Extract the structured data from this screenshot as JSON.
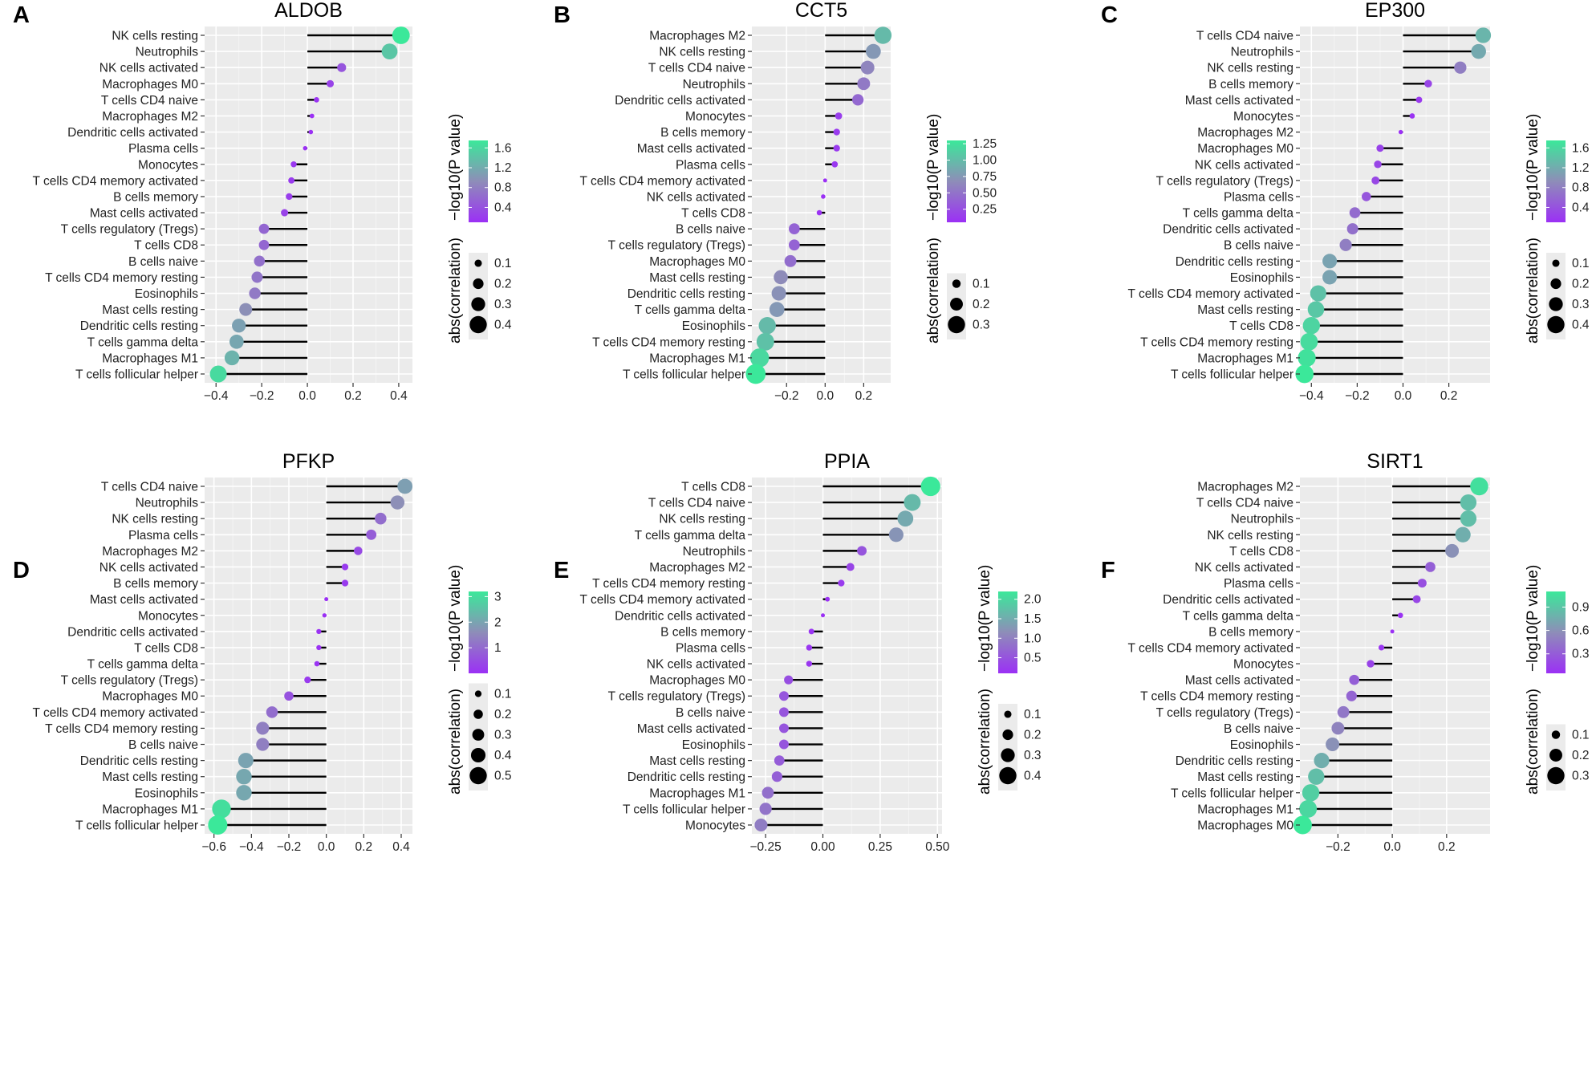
{
  "chart_data": [
    {
      "type": "lollipop",
      "panel": "A",
      "title": "ALDOB",
      "xlim": [
        -0.45,
        0.46
      ],
      "xticks": [
        -0.4,
        -0.2,
        0.0,
        0.2,
        0.4
      ],
      "xtick_labels": [
        "−0.4",
        "−0.2",
        "0.0",
        "0.2",
        "0.4"
      ],
      "categories": [
        "NK cells resting",
        "Neutrophils",
        "NK cells activated",
        "Macrophages M0",
        "T cells CD4 naive",
        "Macrophages M2",
        "Dendritic cells activated",
        "Plasma cells",
        "Monocytes",
        "T cells CD4 memory activated",
        "B cells memory",
        "Mast cells activated",
        "T cells regulatory (Tregs)",
        "T cells CD8",
        "B cells naive",
        "T cells CD4 memory resting",
        "Eosinophils",
        "Mast cells resting",
        "Dendritic cells resting",
        "T cells gamma delta",
        "Macrophages M1",
        "T cells follicular helper"
      ],
      "values": [
        0.41,
        0.36,
        0.15,
        0.1,
        0.04,
        0.02,
        0.015,
        -0.01,
        -0.06,
        -0.07,
        -0.08,
        -0.1,
        -0.19,
        -0.19,
        -0.21,
        -0.22,
        -0.23,
        -0.27,
        -0.3,
        -0.31,
        -0.33,
        -0.39
      ],
      "color_legend": {
        "title": "−log10(P value)",
        "ticks": [
          0.4,
          0.8,
          1.2,
          1.6
        ],
        "tick_labels": [
          "0.4",
          "0.8",
          "1.2",
          "1.6"
        ],
        "range": [
          0.1,
          1.75
        ]
      },
      "size_legend": {
        "title": "abs(correlation)",
        "ticks": [
          0.1,
          0.2,
          0.3,
          0.4
        ],
        "tick_labels": [
          "0.1",
          "0.2",
          "0.3",
          "0.4"
        ]
      },
      "colors": {
        "low": "#9b30f5",
        "mid": "#8e8db8",
        "high": "#3be89a"
      }
    },
    {
      "type": "lollipop",
      "panel": "B",
      "title": "CCT5",
      "xlim": [
        -0.38,
        0.34
      ],
      "xticks": [
        -0.2,
        0.0,
        0.2
      ],
      "xtick_labels": [
        "−0.2",
        "0.0",
        "0.2"
      ],
      "categories": [
        "Macrophages M2",
        "NK cells resting",
        "T cells CD4 naive",
        "Neutrophils",
        "Dendritic cells activated",
        "Monocytes",
        "B cells memory",
        "Mast cells activated",
        "Plasma cells",
        "T cells CD4 memory activated",
        "NK cells activated",
        "T cells CD8",
        "B cells naive",
        "T cells regulatory (Tregs)",
        "Macrophages M0",
        "Mast cells resting",
        "Dendritic cells resting",
        "T cells gamma delta",
        "Eosinophils",
        "T cells CD4 memory resting",
        "Macrophages M1",
        "T cells follicular helper"
      ],
      "values": [
        0.3,
        0.25,
        0.22,
        0.2,
        0.17,
        0.07,
        0.06,
        0.06,
        0.05,
        0.0,
        -0.01,
        -0.03,
        -0.16,
        -0.16,
        -0.18,
        -0.23,
        -0.24,
        -0.25,
        -0.3,
        -0.31,
        -0.34,
        -0.36
      ],
      "color_legend": {
        "title": "−log10(P value)",
        "ticks": [
          0.25,
          0.5,
          0.75,
          1.0,
          1.25
        ],
        "tick_labels": [
          "0.25",
          "0.50",
          "0.75",
          "1.00",
          "1.25"
        ],
        "range": [
          0.05,
          1.3
        ]
      },
      "size_legend": {
        "title": "abs(correlation)",
        "ticks": [
          0.1,
          0.2,
          0.3
        ],
        "tick_labels": [
          "0.1",
          "0.2",
          "0.3"
        ]
      },
      "colors": {
        "low": "#9b30f5",
        "mid": "#8e8db8",
        "high": "#3be89a"
      }
    },
    {
      "type": "lollipop",
      "panel": "C",
      "title": "EP300",
      "xlim": [
        -0.45,
        0.38
      ],
      "xticks": [
        -0.4,
        -0.2,
        0.0,
        0.2
      ],
      "xtick_labels": [
        "−0.4",
        "−0.2",
        "0.0",
        "0.2"
      ],
      "categories": [
        "T cells CD4 naive",
        "Neutrophils",
        "NK cells resting",
        "B cells memory",
        "Mast cells activated",
        "Monocytes",
        "Macrophages M2",
        "Macrophages M0",
        "NK cells activated",
        "T cells regulatory (Tregs)",
        "Plasma cells",
        "T cells gamma delta",
        "Dendritic cells activated",
        "B cells naive",
        "Dendritic cells resting",
        "Eosinophils",
        "T cells CD4 memory activated",
        "Mast cells resting",
        "T cells CD8",
        "T cells CD4 memory resting",
        "Macrophages M1",
        "T cells follicular helper"
      ],
      "values": [
        0.35,
        0.33,
        0.25,
        0.11,
        0.07,
        0.04,
        -0.01,
        -0.1,
        -0.11,
        -0.12,
        -0.16,
        -0.21,
        -0.22,
        -0.25,
        -0.32,
        -0.32,
        -0.37,
        -0.38,
        -0.4,
        -0.41,
        -0.42,
        -0.43
      ],
      "color_legend": {
        "title": "−log10(P value)",
        "ticks": [
          0.4,
          0.8,
          1.2,
          1.6
        ],
        "tick_labels": [
          "0.4",
          "0.8",
          "1.2",
          "1.6"
        ],
        "range": [
          0.1,
          1.75
        ]
      },
      "size_legend": {
        "title": "abs(correlation)",
        "ticks": [
          0.1,
          0.2,
          0.3,
          0.4
        ],
        "tick_labels": [
          "0.1",
          "0.2",
          "0.3",
          "0.4"
        ]
      },
      "colors": {
        "low": "#9b30f5",
        "mid": "#8e8db8",
        "high": "#3be89a"
      }
    },
    {
      "type": "lollipop",
      "panel": "D",
      "title": "PFKP",
      "xlim": [
        -0.65,
        0.46
      ],
      "xticks": [
        -0.6,
        -0.4,
        -0.2,
        0.0,
        0.2,
        0.4
      ],
      "xtick_labels": [
        "−0.6",
        "−0.4",
        "−0.2",
        "0.0",
        "0.2",
        "0.4"
      ],
      "categories": [
        "T cells CD4 naive",
        "Neutrophils",
        "NK cells resting",
        "Plasma cells",
        "Macrophages M2",
        "NK cells activated",
        "B cells memory",
        "Mast cells activated",
        "Monocytes",
        "Dendritic cells activated",
        "T cells CD8",
        "T cells gamma delta",
        "T cells regulatory (Tregs)",
        "Macrophages M0",
        "T cells CD4 memory activated",
        "T cells CD4 memory resting",
        "B cells naive",
        "Dendritic cells resting",
        "Mast cells resting",
        "Eosinophils",
        "Macrophages M1",
        "T cells follicular helper"
      ],
      "values": [
        0.42,
        0.38,
        0.29,
        0.24,
        0.17,
        0.1,
        0.1,
        0.0,
        -0.01,
        -0.04,
        -0.04,
        -0.05,
        -0.1,
        -0.2,
        -0.29,
        -0.34,
        -0.34,
        -0.43,
        -0.44,
        -0.44,
        -0.56,
        -0.58
      ],
      "color_legend": {
        "title": "−log10(P value)",
        "ticks": [
          1,
          2,
          3
        ],
        "tick_labels": [
          "1",
          "2",
          "3"
        ],
        "range": [
          0.0,
          3.2
        ]
      },
      "size_legend": {
        "title": "abs(correlation)",
        "ticks": [
          0.1,
          0.2,
          0.3,
          0.4,
          0.5
        ],
        "tick_labels": [
          "0.1",
          "0.2",
          "0.3",
          "0.4",
          "0.5"
        ]
      },
      "colors": {
        "low": "#9b30f5",
        "mid": "#8e8db8",
        "high": "#3be89a"
      }
    },
    {
      "type": "lollipop",
      "panel": "E",
      "title": "PPIA",
      "xlim": [
        -0.31,
        0.52
      ],
      "xticks": [
        -0.25,
        0.0,
        0.25,
        0.5
      ],
      "xtick_labels": [
        "−0.25",
        "0.00",
        "0.25",
        "0.50"
      ],
      "categories": [
        "T cells CD8",
        "T cells CD4 naive",
        "NK cells resting",
        "T cells gamma delta",
        "Neutrophils",
        "Macrophages M2",
        "T cells CD4 memory resting",
        "T cells CD4 memory activated",
        "Dendritic cells activated",
        "B cells memory",
        "Plasma cells",
        "NK cells activated",
        "Macrophages M0",
        "T cells regulatory (Tregs)",
        "B cells naive",
        "Mast cells activated",
        "Eosinophils",
        "Mast cells resting",
        "Dendritic cells resting",
        "Macrophages M1",
        "T cells follicular helper",
        "Monocytes"
      ],
      "values": [
        0.47,
        0.39,
        0.36,
        0.32,
        0.17,
        0.12,
        0.08,
        0.02,
        0.0,
        -0.05,
        -0.06,
        -0.06,
        -0.15,
        -0.17,
        -0.17,
        -0.17,
        -0.17,
        -0.19,
        -0.2,
        -0.24,
        -0.25,
        -0.27
      ],
      "color_legend": {
        "title": "−log10(P value)",
        "ticks": [
          0.5,
          1.0,
          1.5,
          2.0
        ],
        "tick_labels": [
          "0.5",
          "1.0",
          "1.5",
          "2.0"
        ],
        "range": [
          0.1,
          2.2
        ]
      },
      "size_legend": {
        "title": "abs(correlation)",
        "ticks": [
          0.1,
          0.2,
          0.3,
          0.4
        ],
        "tick_labels": [
          "0.1",
          "0.2",
          "0.3",
          "0.4"
        ]
      },
      "colors": {
        "low": "#9b30f5",
        "mid": "#8e8db8",
        "high": "#3be89a"
      }
    },
    {
      "type": "lollipop",
      "panel": "F",
      "title": "SIRT1",
      "xlim": [
        -0.34,
        0.36
      ],
      "xticks": [
        -0.2,
        0.0,
        0.2
      ],
      "xtick_labels": [
        "−0.2",
        "0.0",
        "0.2"
      ],
      "categories": [
        "Macrophages M2",
        "T cells CD4 naive",
        "Neutrophils",
        "NK cells resting",
        "T cells CD8",
        "NK cells activated",
        "Plasma cells",
        "Dendritic cells activated",
        "T cells gamma delta",
        "B cells memory",
        "T cells CD4 memory activated",
        "Monocytes",
        "Mast cells activated",
        "T cells CD4 memory resting",
        "T cells regulatory (Tregs)",
        "B cells naive",
        "Eosinophils",
        "Dendritic cells resting",
        "Mast cells resting",
        "T cells follicular helper",
        "Macrophages M1",
        "Macrophages M0"
      ],
      "values": [
        0.32,
        0.28,
        0.28,
        0.26,
        0.22,
        0.14,
        0.11,
        0.09,
        0.03,
        0.0,
        -0.04,
        -0.08,
        -0.14,
        -0.15,
        -0.18,
        -0.2,
        -0.22,
        -0.26,
        -0.28,
        -0.3,
        -0.31,
        -0.33
      ],
      "color_legend": {
        "title": "−log10(P value)",
        "ticks": [
          0.3,
          0.6,
          0.9
        ],
        "tick_labels": [
          "0.3",
          "0.6",
          "0.9"
        ],
        "range": [
          0.05,
          1.1
        ]
      },
      "size_legend": {
        "title": "abs(correlation)",
        "ticks": [
          0.1,
          0.2,
          0.3
        ],
        "tick_labels": [
          "0.1",
          "0.2",
          "0.3"
        ]
      },
      "colors": {
        "low": "#9b30f5",
        "mid": "#8e8db8",
        "high": "#3be89a"
      }
    }
  ]
}
